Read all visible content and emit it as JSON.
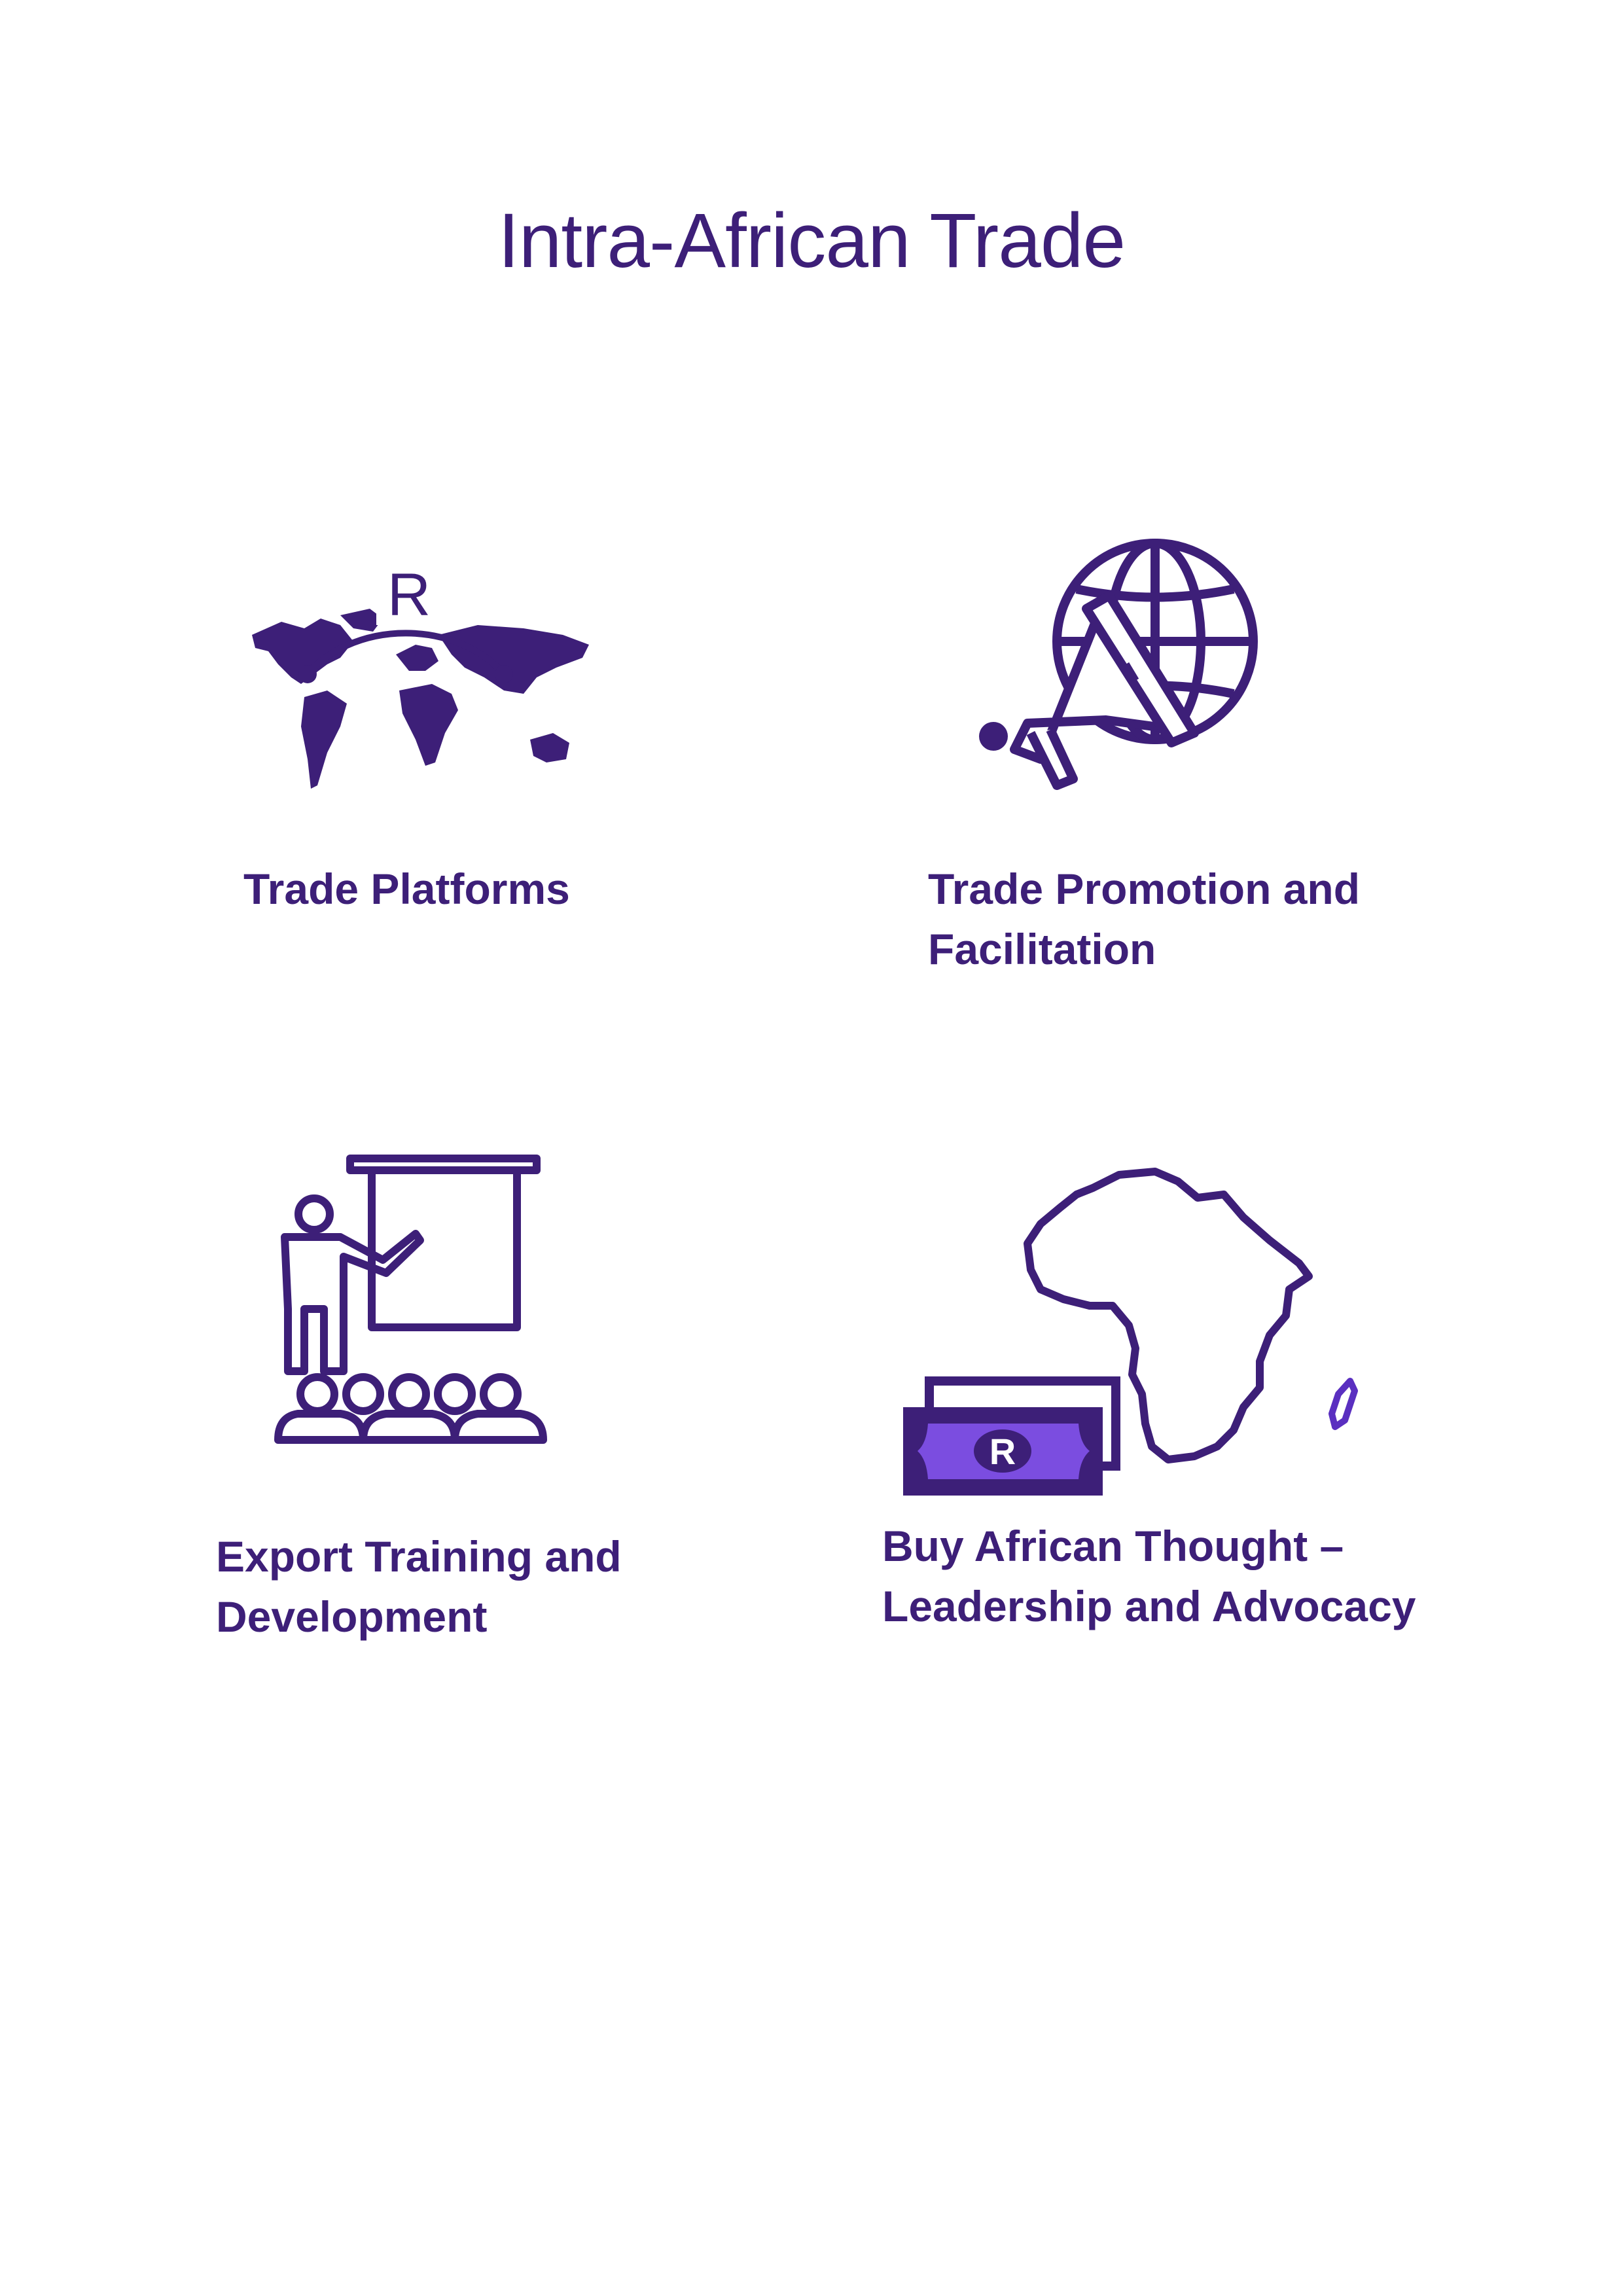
{
  "title": "Intra-African Trade",
  "colors": {
    "primary": "#3d1f78",
    "accent": "#7b4de0",
    "background": "#ffffff"
  },
  "items": [
    {
      "icon": "world-map-icon",
      "icon_text": "R",
      "label_lines": [
        "Trade Platforms"
      ]
    },
    {
      "icon": "megaphone-globe-icon",
      "label_lines": [
        "Trade Promotion and",
        "Facilitation"
      ]
    },
    {
      "icon": "presentation-training-icon",
      "label_lines": [
        "Export Training and",
        "Development"
      ]
    },
    {
      "icon": "africa-money-icon",
      "icon_text": "R",
      "label_lines": [
        "Buy African Thought –",
        "Leadership and Advocacy"
      ]
    }
  ]
}
